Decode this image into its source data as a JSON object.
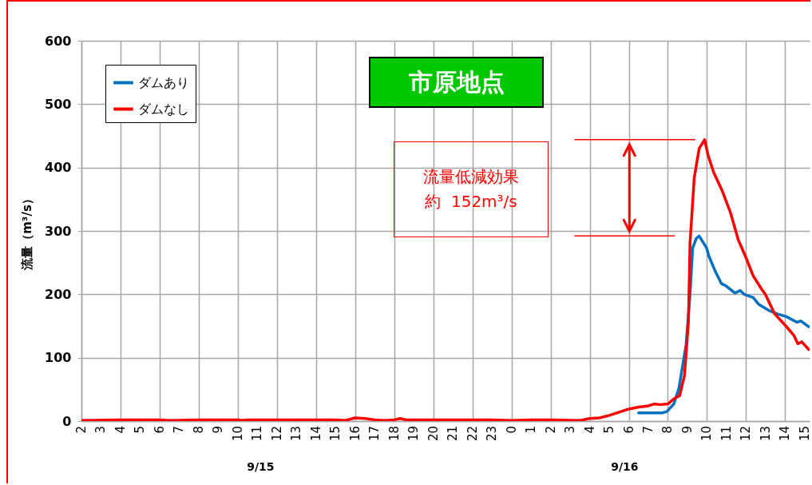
{
  "chart_data": {
    "type": "line",
    "title": "市原地点",
    "ylabel": "流量（m³/s）",
    "annotations": [
      "流量低減効果",
      "約  152m³/s",
      "9/15",
      "9/16"
    ],
    "series": [
      {
        "name": "ダムあり",
        "color": "#0070c0",
        "x": [
          "--09-16T06:30",
          "--09-16T07:42",
          "--09-16T07:57",
          "--09-16T08:18",
          "--09-16T08:34",
          "--09-16T08:56",
          "--09-16T09:08",
          "--09-16T09:16",
          "--09-16T09:27",
          "--09-16T09:36",
          "--09-16T09:59",
          "--09-16T10:06",
          "--09-16T10:24",
          "--09-16T10:44",
          "--09-16T10:56",
          "--09-16T11:26",
          "--09-16T11:42",
          "--09-16T11:54",
          "--09-16T12:22",
          "--09-16T12:39",
          "--09-16T13:12",
          "--09-16T13:36",
          "--09-16T14:03",
          "--09-16T14:36",
          "--09-16T14:48",
          "--09-16T15:12"
        ],
        "values": [
          13,
          13,
          15,
          27,
          52,
          121,
          200,
          273,
          288,
          292,
          273,
          260,
          238,
          217,
          214,
          202,
          206,
          200,
          195,
          184,
          174,
          169,
          165,
          156,
          158,
          149
        ]
      },
      {
        "name": "ダムなし",
        "color": "#ff0000",
        "x": [
          "--09-15T02:00",
          "--09-15T04:00",
          "--09-15T06:00",
          "--09-15T06:30",
          "--09-15T08:00",
          "--09-15T10:00",
          "--09-15T10:12",
          "--09-15T10:30",
          "--09-15T15:00",
          "--09-15T15:30",
          "--09-15T16:00",
          "--09-15T16:30",
          "--09-15T17:00",
          "--09-15T17:30",
          "--09-15T18:00",
          "--09-15T18:18",
          "--09-15T18:36",
          "--09-15T22:00",
          "--09-15T23:00",
          "--09-16T00:00",
          "--09-16T01:00",
          "--09-16T02:00",
          "--09-16T03:30",
          "--09-16T04:00",
          "--09-16T04:30",
          "--09-16T05:00",
          "--09-16T05:30",
          "--09-16T06:00",
          "--09-16T06:30",
          "--09-16T07:00",
          "--09-16T07:18",
          "--09-16T07:36",
          "--09-16T08:00",
          "--09-16T08:18",
          "--09-16T08:36",
          "--09-16T08:51",
          "--09-16T09:03",
          "--09-16T09:08",
          "--09-16T09:21",
          "--09-16T09:36",
          "--09-16T09:53",
          "--09-16T10:03",
          "--09-16T10:20",
          "--09-16T10:47",
          "--09-16T11:12",
          "--09-16T11:36",
          "--09-16T11:58",
          "--09-16T12:22",
          "--09-16T12:48",
          "--09-16T12:59",
          "--09-16T13:28",
          "--09-16T14:02",
          "--09-16T14:27",
          "--09-16T14:39",
          "--09-16T14:51",
          "--09-16T15:12"
        ],
        "values": [
          1,
          2,
          2,
          1,
          2,
          2,
          1,
          2,
          2,
          1,
          5,
          4,
          2,
          1,
          2,
          4,
          2,
          2,
          2,
          1,
          2,
          2,
          1,
          4,
          5,
          9,
          14,
          19,
          22,
          24,
          27,
          26,
          27,
          35,
          40,
          72,
          156,
          281,
          384,
          430,
          444,
          420,
          393,
          363,
          329,
          286,
          260,
          229,
          208,
          200,
          169,
          150,
          135,
          122,
          125,
          113
        ]
      }
    ],
    "xlim": [
      "--09-15T02:00",
      "--09-16T15:15"
    ],
    "xticks": [
      {
        "value": "--09-15T02:00",
        "label": "2"
      },
      {
        "value": "--09-15T03:00",
        "label": "3"
      },
      {
        "value": "--09-15T04:00",
        "label": "4"
      },
      {
        "value": "--09-15T05:00",
        "label": "5"
      },
      {
        "value": "--09-15T06:00",
        "label": "6"
      },
      {
        "value": "--09-15T07:00",
        "label": "7"
      },
      {
        "value": "--09-15T08:00",
        "label": "8"
      },
      {
        "value": "--09-15T09:00",
        "label": "9"
      },
      {
        "value": "--09-15T10:00",
        "label": "10"
      },
      {
        "value": "--09-15T11:00",
        "label": "11"
      },
      {
        "value": "--09-15T12:00",
        "label": "12"
      },
      {
        "value": "--09-15T13:00",
        "label": "13"
      },
      {
        "value": "--09-15T14:00",
        "label": "14"
      },
      {
        "value": "--09-15T15:00",
        "label": "15"
      },
      {
        "value": "--09-15T16:00",
        "label": "16"
      },
      {
        "value": "--09-15T17:00",
        "label": "17"
      },
      {
        "value": "--09-15T18:00",
        "label": "18"
      },
      {
        "value": "--09-15T19:00",
        "label": "19"
      },
      {
        "value": "--09-15T20:00",
        "label": "20"
      },
      {
        "value": "--09-15T21:00",
        "label": "21"
      },
      {
        "value": "--09-15T22:00",
        "label": "22"
      },
      {
        "value": "--09-15T23:00",
        "label": "23"
      },
      {
        "value": "--09-16T00:00",
        "label": "0"
      },
      {
        "value": "--09-16T01:00",
        "label": "1"
      },
      {
        "value": "--09-16T02:00",
        "label": "2"
      },
      {
        "value": "--09-16T03:00",
        "label": "3"
      },
      {
        "value": "--09-16T04:00",
        "label": "4"
      },
      {
        "value": "--09-16T05:00",
        "label": "5"
      },
      {
        "value": "--09-16T06:00",
        "label": "6"
      },
      {
        "value": "--09-16T07:00",
        "label": "7"
      },
      {
        "value": "--09-16T08:00",
        "label": "8"
      },
      {
        "value": "--09-16T09:00",
        "label": "9"
      },
      {
        "value": "--09-16T10:00",
        "label": "10"
      },
      {
        "value": "--09-16T11:00",
        "label": "11"
      },
      {
        "value": "--09-16T12:00",
        "label": "12"
      },
      {
        "value": "--09-16T13:00",
        "label": "13"
      },
      {
        "value": "--09-16T14:00",
        "label": "14"
      },
      {
        "value": "--09-16T15:00",
        "label": "15"
      }
    ],
    "ylim": [
      0,
      600
    ],
    "yticks": [
      0,
      100,
      200,
      300,
      400,
      500,
      600
    ],
    "ref_lines": [
      {
        "axis": "y",
        "value": 444,
        "color": "#ff0000"
      },
      {
        "axis": "y",
        "value": 292,
        "color": "#ff0000"
      }
    ],
    "grid": true,
    "legend": "top left",
    "line_style": "solid"
  }
}
